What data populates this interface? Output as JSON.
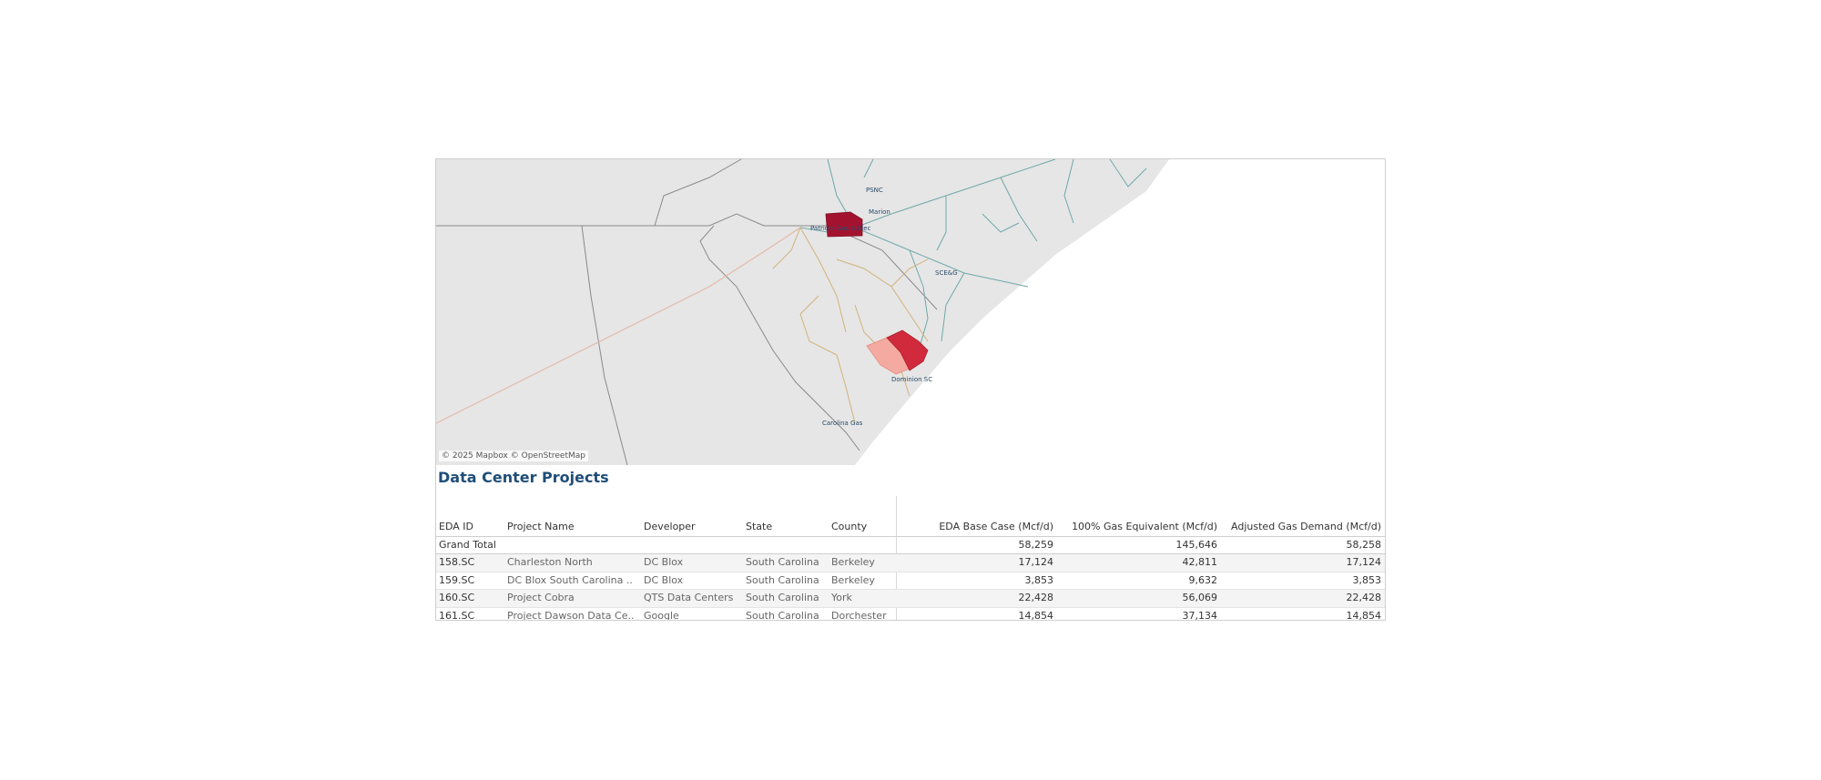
{
  "map": {
    "attribution": "© 2025 Mapbox © OpenStreetMap",
    "labels": {
      "psnc": "PSNC",
      "marion": "Marion",
      "patriots": "Patriots Gas & Elec",
      "scege": "SCE&G",
      "dominion": "Dominion SC",
      "carolina": "Carolina Gas"
    },
    "colors": {
      "land": "#e6e6e6",
      "ocean": "#ffffff",
      "york": "#a3132f",
      "berkeley": "#d12a3c",
      "dorchester": "#f4aaa0",
      "pipeline_teal": "#6fa8a8",
      "pipeline_tan": "#d2b27a"
    }
  },
  "section_title": "Data Center Projects",
  "table": {
    "headers": {
      "id": "EDA ID",
      "name": "Project Name",
      "developer": "Developer",
      "state": "State",
      "county": "County",
      "base": "EDA Base Case (Mcf/d)",
      "gas": "100% Gas Equivalent (Mcf/d)",
      "adj": "Adjusted Gas Demand (Mcf/d)"
    },
    "total": {
      "label": "Grand Total",
      "base": "58,259",
      "gas": "145,646",
      "adj": "58,258"
    },
    "rows": [
      {
        "id": "158.SC",
        "name": "Charleston North",
        "developer": "DC Blox",
        "state": "South Carolina",
        "county": "Berkeley",
        "base": "17,124",
        "gas": "42,811",
        "adj": "17,124"
      },
      {
        "id": "159.SC",
        "name": "DC Blox South Carolina ..",
        "developer": "DC Blox",
        "state": "South Carolina",
        "county": "Berkeley",
        "base": "3,853",
        "gas": "9,632",
        "adj": "3,853"
      },
      {
        "id": "160.SC",
        "name": "Project Cobra",
        "developer": "QTS Data Centers",
        "state": "South Carolina",
        "county": "York",
        "base": "22,428",
        "gas": "56,069",
        "adj": "22,428"
      },
      {
        "id": "161.SC",
        "name": "Project Dawson Data Ce..",
        "developer": "Google",
        "state": "South Carolina",
        "county": "Dorchester",
        "base": "14,854",
        "gas": "37,134",
        "adj": "14,854"
      }
    ]
  }
}
